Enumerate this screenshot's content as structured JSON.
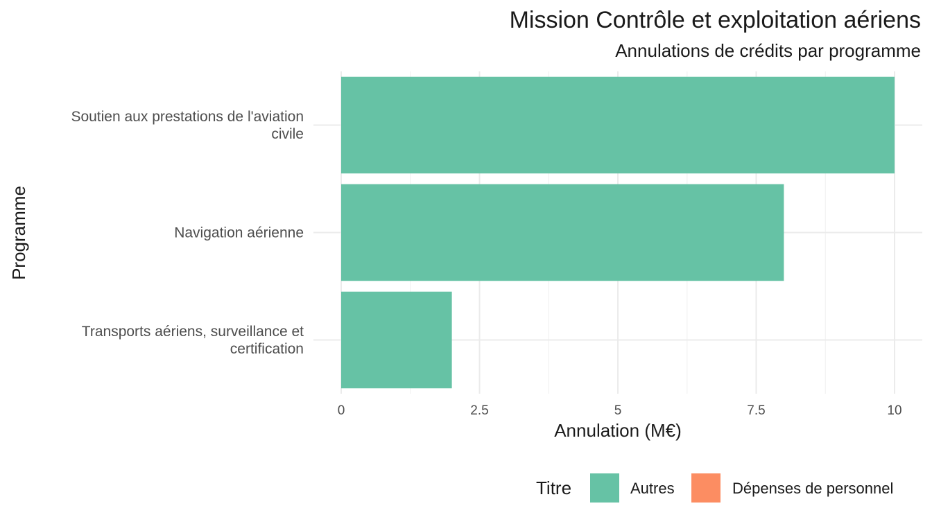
{
  "chart_data": {
    "type": "bar",
    "orientation": "horizontal",
    "title": "Mission Contrôle et exploitation aériens",
    "subtitle": "Annulations de crédits par programme",
    "xlabel": "Annulation (M€)",
    "ylabel": "Programme",
    "categories": [
      [
        "Soutien aux prestations de l'aviation",
        "civile"
      ],
      [
        "Navigation aérienne"
      ],
      [
        "Transports aériens, surveillance et",
        "certification"
      ]
    ],
    "series": [
      {
        "name": "Autres",
        "color": "#66c2a5",
        "values": [
          10,
          8,
          2
        ]
      },
      {
        "name": "Dépenses de personnel",
        "color": "#fc8d62",
        "values": [
          0,
          0,
          0
        ]
      }
    ],
    "xlim": [
      0,
      10
    ],
    "xticks": [
      0,
      2.5,
      5,
      7.5,
      10
    ],
    "xtick_labels": [
      "0",
      "2.5",
      "5",
      "7.5",
      "10"
    ],
    "grid": true,
    "legend": {
      "title": "Titre",
      "position": "bottom-right",
      "entries": [
        "Autres",
        "Dépenses de personnel"
      ]
    }
  }
}
